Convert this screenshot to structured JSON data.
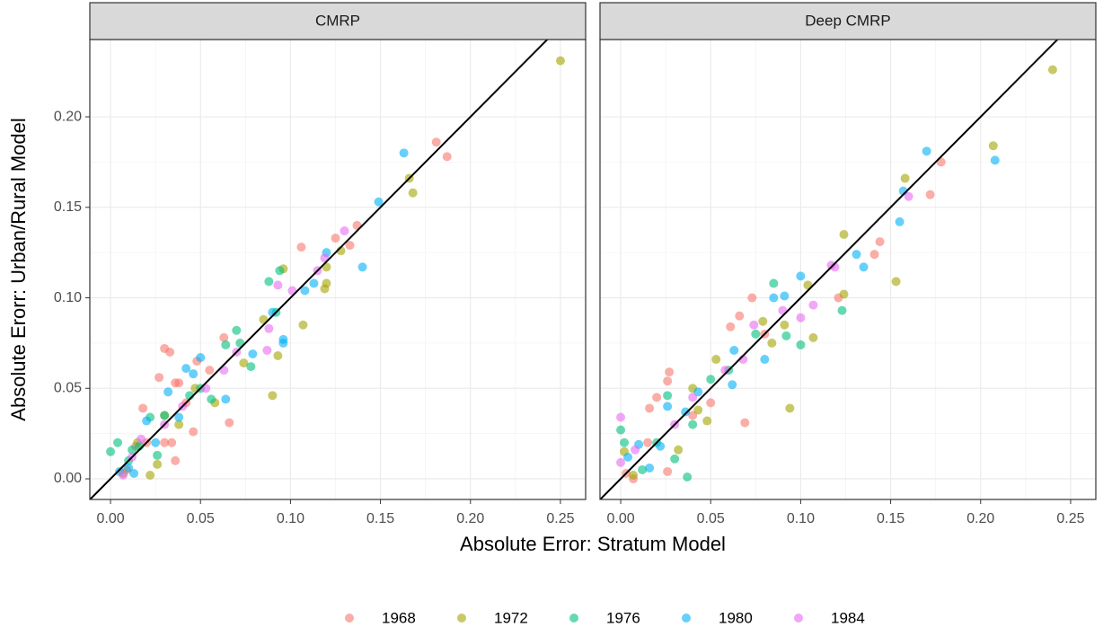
{
  "chart_data": {
    "type": "scatter",
    "xlabel": "Absolute Error: Stratum Model",
    "ylabel": "Absolute Erorr: Urban/Rural Model",
    "xlim": [
      -0.0115,
      0.264
    ],
    "ylim": [
      -0.0114,
      0.2427
    ],
    "xticks": [
      {
        "value": 0,
        "label": "0.00"
      },
      {
        "value": 0.05,
        "label": "0.05"
      },
      {
        "value": 0.1,
        "label": "0.10"
      },
      {
        "value": 0.15,
        "label": "0.15"
      },
      {
        "value": 0.2,
        "label": "0.20"
      },
      {
        "value": 0.25,
        "label": "0.25"
      }
    ],
    "yticks": [
      {
        "value": 0,
        "label": "0.00"
      },
      {
        "value": 0.05,
        "label": "0.05"
      },
      {
        "value": 0.1,
        "label": "0.10"
      },
      {
        "value": 0.15,
        "label": "0.15"
      },
      {
        "value": 0.2,
        "label": "0.20"
      }
    ],
    "grid": true,
    "reference_line": {
      "slope": 1,
      "intercept": 0
    },
    "legend": "bottom",
    "series": [
      {
        "name": "1968",
        "color": "#F8766D"
      },
      {
        "name": "1972",
        "color": "#A3A500"
      },
      {
        "name": "1976",
        "color": "#00BF7D"
      },
      {
        "name": "1980",
        "color": "#00B0F6"
      },
      {
        "name": "1984",
        "color": "#E76BF3"
      }
    ],
    "panels": [
      {
        "title": "CMRP",
        "series": [
          {
            "x": [
              0.181,
              0.187,
              0.137,
              0.133,
              0.125,
              0.106,
              0.03,
              0.033,
              0.027,
              0.036,
              0.038,
              0.066,
              0.046,
              0.036,
              0.03,
              0.034,
              0.018,
              0.014,
              0.063,
              0.048,
              0.055,
              0.02,
              0.009,
              0.042
            ],
            "values": [
              0.186,
              0.178,
              0.14,
              0.129,
              0.133,
              0.128,
              0.072,
              0.07,
              0.056,
              0.053,
              0.053,
              0.031,
              0.026,
              0.01,
              0.02,
              0.02,
              0.039,
              0.018,
              0.078,
              0.065,
              0.06,
              0.02,
              0.005,
              0.042
            ]
          },
          {
            "x": [
              0.25,
              0.166,
              0.168,
              0.12,
              0.119,
              0.107,
              0.093,
              0.09,
              0.096,
              0.128,
              0.12,
              0.085,
              0.058,
              0.038,
              0.026,
              0.022,
              0.03,
              0.015,
              0.007,
              0.047,
              0.074
            ],
            "values": [
              0.231,
              0.166,
              0.158,
              0.108,
              0.105,
              0.085,
              0.068,
              0.046,
              0.116,
              0.126,
              0.117,
              0.088,
              0.042,
              0.03,
              0.008,
              0.002,
              0.035,
              0.02,
              0.003,
              0.05,
              0.064
            ]
          },
          {
            "x": [
              0.088,
              0.094,
              0.064,
              0.07,
              0.056,
              0.078,
              0.072,
              0.03,
              0.022,
              0.016,
              0.004,
              0.0,
              0.01,
              0.044,
              0.05,
              0.092,
              0.012,
              0.026
            ],
            "values": [
              0.109,
              0.115,
              0.074,
              0.082,
              0.044,
              0.062,
              0.075,
              0.035,
              0.034,
              0.018,
              0.02,
              0.015,
              0.01,
              0.046,
              0.05,
              0.092,
              0.016,
              0.013
            ]
          },
          {
            "x": [
              0.163,
              0.149,
              0.14,
              0.12,
              0.113,
              0.108,
              0.096,
              0.096,
              0.09,
              0.079,
              0.064,
              0.05,
              0.042,
              0.046,
              0.032,
              0.038,
              0.02,
              0.025,
              0.01,
              0.005,
              0.013
            ],
            "values": [
              0.18,
              0.153,
              0.117,
              0.125,
              0.108,
              0.104,
              0.077,
              0.075,
              0.092,
              0.069,
              0.044,
              0.067,
              0.061,
              0.058,
              0.048,
              0.034,
              0.032,
              0.02,
              0.006,
              0.004,
              0.003
            ]
          },
          {
            "x": [
              0.13,
              0.119,
              0.101,
              0.093,
              0.088,
              0.087,
              0.07,
              0.063,
              0.053,
              0.017,
              0.012,
              0.007,
              0.03,
              0.04,
              0.115
            ],
            "values": [
              0.137,
              0.122,
              0.104,
              0.107,
              0.083,
              0.071,
              0.07,
              0.06,
              0.05,
              0.022,
              0.012,
              0.002,
              0.03,
              0.04,
              0.115
            ]
          }
        ]
      },
      {
        "title": "Deep CMRP",
        "series": [
          {
            "x": [
              0.178,
              0.172,
              0.144,
              0.141,
              0.121,
              0.073,
              0.066,
              0.061,
              0.069,
              0.027,
              0.026,
              0.02,
              0.016,
              0.026,
              0.007,
              0.003,
              0.04,
              0.05,
              0.08,
              0.015
            ],
            "values": [
              0.175,
              0.157,
              0.131,
              0.124,
              0.1,
              0.1,
              0.09,
              0.084,
              0.031,
              0.059,
              0.054,
              0.045,
              0.039,
              0.004,
              0.0,
              0.003,
              0.035,
              0.042,
              0.08,
              0.02
            ]
          },
          {
            "x": [
              0.24,
              0.207,
              0.158,
              0.153,
              0.124,
              0.124,
              0.107,
              0.094,
              0.091,
              0.084,
              0.079,
              0.048,
              0.043,
              0.053,
              0.032,
              0.007,
              0.002,
              0.04,
              0.104
            ],
            "values": [
              0.226,
              0.184,
              0.166,
              0.109,
              0.135,
              0.102,
              0.078,
              0.039,
              0.085,
              0.075,
              0.087,
              0.032,
              0.038,
              0.066,
              0.016,
              0.002,
              0.015,
              0.05,
              0.107
            ]
          },
          {
            "x": [
              0.092,
              0.1,
              0.123,
              0.085,
              0.06,
              0.075,
              0.037,
              0.03,
              0.026,
              0.0,
              0.002,
              0.012,
              0.02,
              0.05,
              0.04
            ],
            "values": [
              0.079,
              0.074,
              0.093,
              0.108,
              0.06,
              0.08,
              0.001,
              0.011,
              0.046,
              0.027,
              0.02,
              0.005,
              0.02,
              0.055,
              0.03
            ]
          },
          {
            "x": [
              0.17,
              0.208,
              0.157,
              0.155,
              0.135,
              0.131,
              0.1,
              0.091,
              0.08,
              0.063,
              0.062,
              0.043,
              0.036,
              0.026,
              0.01,
              0.016,
              0.004,
              0.022,
              0.085
            ],
            "values": [
              0.181,
              0.176,
              0.159,
              0.142,
              0.117,
              0.124,
              0.112,
              0.101,
              0.066,
              0.071,
              0.052,
              0.048,
              0.037,
              0.04,
              0.019,
              0.006,
              0.012,
              0.018,
              0.1
            ]
          },
          {
            "x": [
              0.16,
              0.119,
              0.107,
              0.1,
              0.074,
              0.068,
              0.058,
              0.0,
              0.0,
              0.008,
              0.04,
              0.03,
              0.117,
              0.09
            ],
            "values": [
              0.156,
              0.117,
              0.096,
              0.089,
              0.085,
              0.066,
              0.06,
              0.034,
              0.009,
              0.016,
              0.045,
              0.03,
              0.118,
              0.093
            ]
          }
        ]
      }
    ]
  }
}
